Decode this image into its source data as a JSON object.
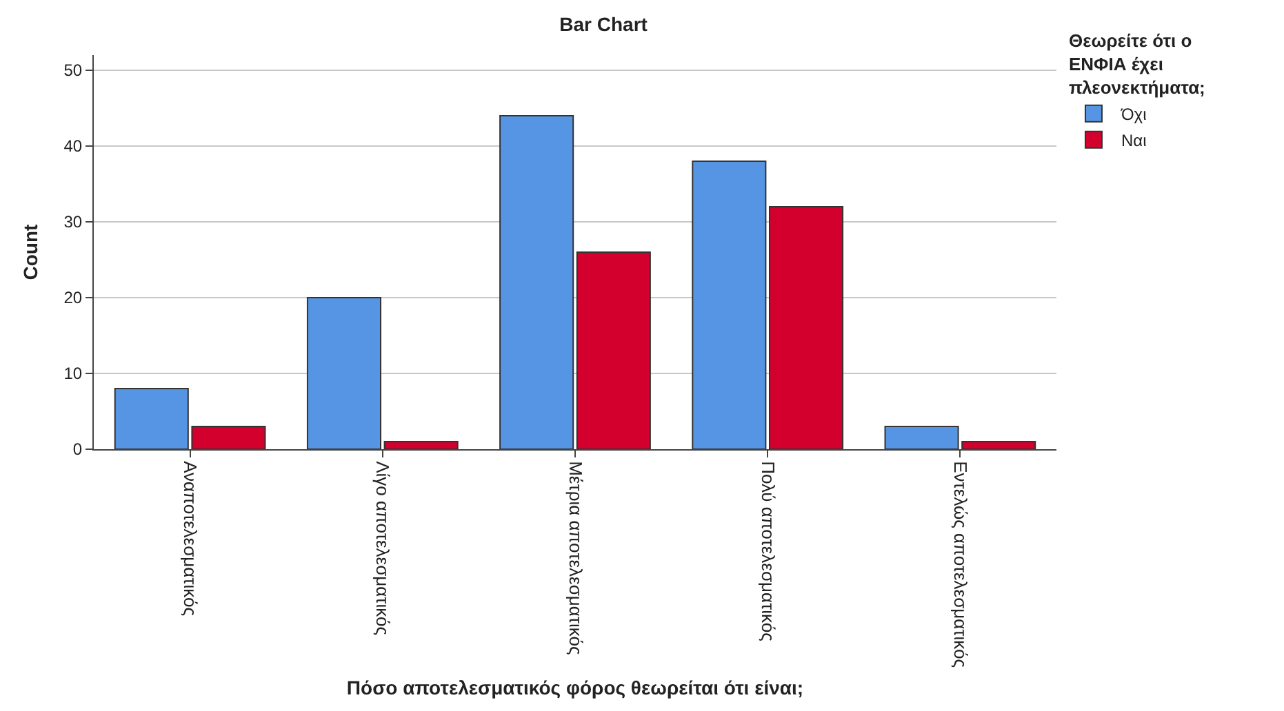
{
  "chart_data": {
    "type": "bar",
    "title": "Bar Chart",
    "xlabel": "Πόσο αποτελεσματικός φόρος θεωρείται ότι είναι;",
    "ylabel": "Count",
    "legend_title": "Θεωρείτε ότι ο\nΕΝΦΙΑ έχει\nπλεονεκτήματα;",
    "categories": [
      "Αναποτελεσματικός",
      "Λίγο αποτελεσματικός",
      "Μέτρια αποτελεσματικός",
      "Πολύ αποτελεσματικός",
      "Εντελώς αποτελεσματικός"
    ],
    "series": [
      {
        "name": "Όχι",
        "color": "#5595e3",
        "values": [
          8,
          20,
          44,
          38,
          3
        ]
      },
      {
        "name": "Ναι",
        "color": "#d3002e",
        "values": [
          3,
          1,
          26,
          32,
          1
        ]
      }
    ],
    "ylim": [
      0,
      52
    ],
    "yticks": [
      0,
      10,
      20,
      30,
      40,
      50
    ],
    "grid": "y",
    "legend": "top right"
  }
}
